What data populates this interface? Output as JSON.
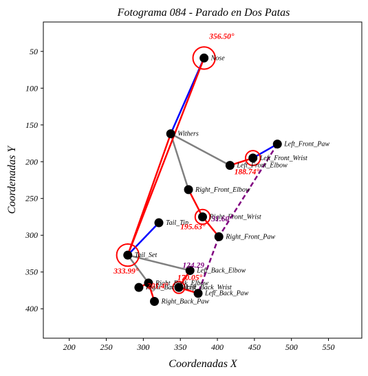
{
  "chart_data": {
    "type": "scatter",
    "title": "Fotograma 084 - Parado en Dos Patas",
    "xlabel": "Coordenadas X",
    "ylabel": "Coordenadas Y",
    "xlim": [
      165,
      595
    ],
    "ylim": [
      440,
      10
    ],
    "y_inverted": true,
    "grid": false,
    "x_ticks": [
      200,
      250,
      300,
      350,
      400,
      450,
      500,
      550
    ],
    "y_ticks": [
      50,
      100,
      150,
      200,
      250,
      300,
      350,
      400
    ],
    "keypoints": [
      {
        "name": "Nose",
        "x": 382,
        "y": 59
      },
      {
        "name": "Withers",
        "x": 337,
        "y": 162
      },
      {
        "name": "Left_Front_Paw",
        "x": 481,
        "y": 176
      },
      {
        "name": "Left_Front_Wrist",
        "x": 448,
        "y": 195
      },
      {
        "name": "Left_Front_Elbow",
        "x": 417,
        "y": 205
      },
      {
        "name": "Right_Front_Elbow",
        "x": 361,
        "y": 238
      },
      {
        "name": "Right_Front_Wrist",
        "x": 380,
        "y": 275
      },
      {
        "name": "Right_Front_Paw",
        "x": 402,
        "y": 302
      },
      {
        "name": "Tail_Tip",
        "x": 321,
        "y": 283
      },
      {
        "name": "Tail_Set",
        "x": 279,
        "y": 327
      },
      {
        "name": "Left_Back_Elbow",
        "x": 363,
        "y": 348
      },
      {
        "name": "Right_Back_Elbow",
        "x": 307,
        "y": 365
      },
      {
        "name": "Right_Back_Wrist",
        "x": 294,
        "y": 371
      },
      {
        "name": "Left_Back_Wrist",
        "x": 348,
        "y": 371
      },
      {
        "name": "Left_Back_Paw",
        "x": 374,
        "y": 379
      },
      {
        "name": "Right_Back_Paw",
        "x": 315,
        "y": 390
      }
    ],
    "skeleton": [
      {
        "from": "Nose",
        "to": "Withers",
        "color": "#0000ff"
      },
      {
        "from": "Withers",
        "to": "Left_Front_Elbow",
        "color": "#808080"
      },
      {
        "from": "Left_Front_Elbow",
        "to": "Left_Front_Wrist",
        "color": "#ff0000"
      },
      {
        "from": "Left_Front_Wrist",
        "to": "Left_Front_Paw",
        "color": "#0000ff"
      },
      {
        "from": "Withers",
        "to": "Right_Front_Elbow",
        "color": "#808080"
      },
      {
        "from": "Right_Front_Elbow",
        "to": "Right_Front_Wrist",
        "color": "#ff0000"
      },
      {
        "from": "Right_Front_Wrist",
        "to": "Right_Front_Paw",
        "color": "#ff0000"
      },
      {
        "from": "Withers",
        "to": "Tail_Set",
        "color": "#ff0000"
      },
      {
        "from": "Nose",
        "to": "Tail_Set",
        "color": "#ff0000"
      },
      {
        "from": "Tail_Set",
        "to": "Tail_Tip",
        "color": "#0000ff"
      },
      {
        "from": "Tail_Set",
        "to": "Left_Back_Elbow",
        "color": "#808080"
      },
      {
        "from": "Left_Back_Elbow",
        "to": "Left_Back_Wrist",
        "color": "#ff0000"
      },
      {
        "from": "Left_Back_Wrist",
        "to": "Left_Back_Paw",
        "color": "#ff0000"
      },
      {
        "from": "Tail_Set",
        "to": "Right_Back_Elbow",
        "color": "#808080"
      },
      {
        "from": "Right_Back_Elbow",
        "to": "Right_Back_Paw",
        "color": "#ff0000"
      },
      {
        "from": "Right_Back_Wrist",
        "to": "Right_Back_Elbow",
        "color": "#ff0000"
      }
    ],
    "dashed_lines": [
      {
        "from": "Left_Front_Paw",
        "to": "Right_Front_Paw",
        "color": "#800080"
      },
      {
        "from": "Right_Front_Paw",
        "to": "Left_Back_Paw",
        "color": "#800080"
      }
    ],
    "angle_circles": [
      {
        "at": "Nose",
        "radius": 15,
        "color": "#ff0000"
      },
      {
        "at": "Tail_Set",
        "radius": 15,
        "color": "#ff0000"
      },
      {
        "at": "Right_Front_Wrist",
        "radius": 10,
        "color": "#ff0000"
      },
      {
        "at": "Left_Front_Wrist",
        "radius": 10,
        "color": "#ff0000"
      },
      {
        "at": "Left_Back_Wrist",
        "radius": 8,
        "color": "#ff0000"
      }
    ],
    "annotations": [
      {
        "text": "356.50°",
        "x": 389,
        "y": 33,
        "color": "#ff0000"
      },
      {
        "text": "333.99°",
        "x": 260,
        "y": 352,
        "color": "#ff0000"
      },
      {
        "text": "188.74°",
        "x": 423,
        "y": 217,
        "color": "#ff0000"
      },
      {
        "text": "195.63°",
        "x": 350,
        "y": 292,
        "color": "#ff0000"
      },
      {
        "text": "31.60",
        "x": 392,
        "y": 281,
        "color": "#800080"
      },
      {
        "text": "124.29",
        "x": 353,
        "y": 344,
        "color": "#800080"
      },
      {
        "text": "170.05°",
        "x": 346,
        "y": 361,
        "color": "#ff0000"
      },
      {
        "text": "201.4°",
        "x": 305,
        "y": 372,
        "color": "#ff0000"
      }
    ]
  }
}
